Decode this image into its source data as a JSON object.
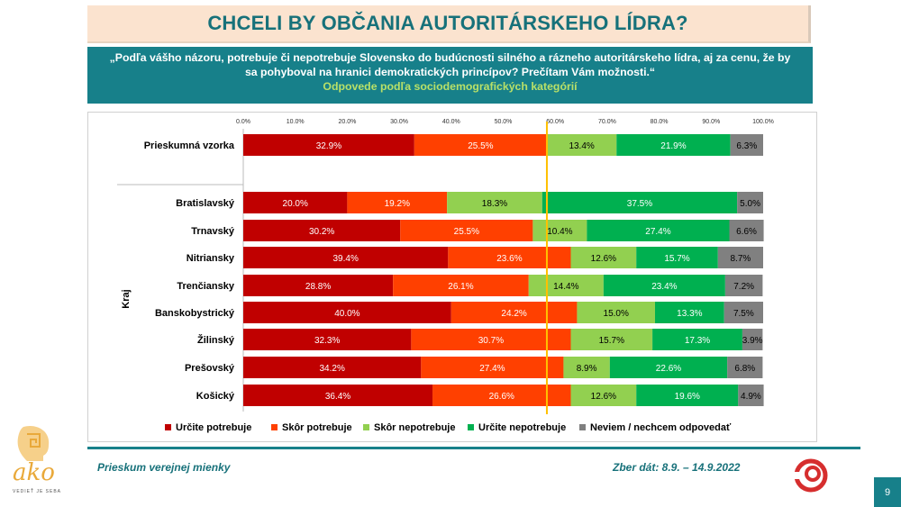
{
  "header": {
    "title": "CHCELI BY OBČANIA AUTORITÁRSKEHO LÍDRA?",
    "question_line1": "„Podľa vášho názoru, potrebuje či nepotrebuje Slovensko do budúcnosti silného a rázneho autoritárskeho lídra, aj za cenu, že by",
    "question_line2": "sa pohyboval na hranici demokratických princípov? Prečítam Vám možnosti.“",
    "subtitle": "Odpovede podľa sociodemografických kategórií"
  },
  "footer": {
    "left": "Prieskum verejnej mienky",
    "right": "Zber dát: 8.9. – 14.9.2022",
    "page_number": "9",
    "logo_text": "ako",
    "logo_tagline": "VEDIEŤ JE SEBA"
  },
  "chart_data": {
    "type": "bar",
    "orientation": "horizontal-stacked-100",
    "x_ticks": [
      "0.0%",
      "10.0%",
      "20.0%",
      "30.0%",
      "40.0%",
      "50.0%",
      "60.0%",
      "70.0%",
      "80.0%",
      "90.0%",
      "100.0%"
    ],
    "xlim": [
      0,
      100
    ],
    "reference_line": 58.4,
    "group_label": "Kraj",
    "categories": [
      "Prieskumná vzorka",
      "Bratislavský",
      "Trnavský",
      "Nitriansky",
      "Trenčiansky",
      "Banskobystrický",
      "Žilinský",
      "Prešovský",
      "Košický"
    ],
    "series": [
      {
        "name": "Určite potrebuje",
        "color": "#c00000",
        "values": [
          32.9,
          20.0,
          30.2,
          39.4,
          28.8,
          40.0,
          32.3,
          34.2,
          36.4
        ]
      },
      {
        "name": "Skôr potrebuje",
        "color": "#ff4000",
        "values": [
          25.5,
          19.2,
          25.5,
          23.6,
          26.1,
          24.2,
          30.7,
          27.4,
          26.6
        ]
      },
      {
        "name": "Skôr nepotrebuje",
        "color": "#92d050",
        "values": [
          13.4,
          18.3,
          10.4,
          12.6,
          14.4,
          15.0,
          15.7,
          8.9,
          12.6
        ]
      },
      {
        "name": "Určite nepotrebuje",
        "color": "#00b050",
        "values": [
          21.9,
          37.5,
          27.4,
          15.7,
          23.4,
          13.3,
          17.3,
          22.6,
          19.6
        ]
      },
      {
        "name": "Neviem / nechcem odpovedať",
        "color": "#808080",
        "values": [
          6.3,
          5.0,
          6.6,
          8.7,
          7.2,
          7.5,
          3.9,
          6.8,
          4.9
        ]
      }
    ],
    "legend_position": "bottom"
  }
}
